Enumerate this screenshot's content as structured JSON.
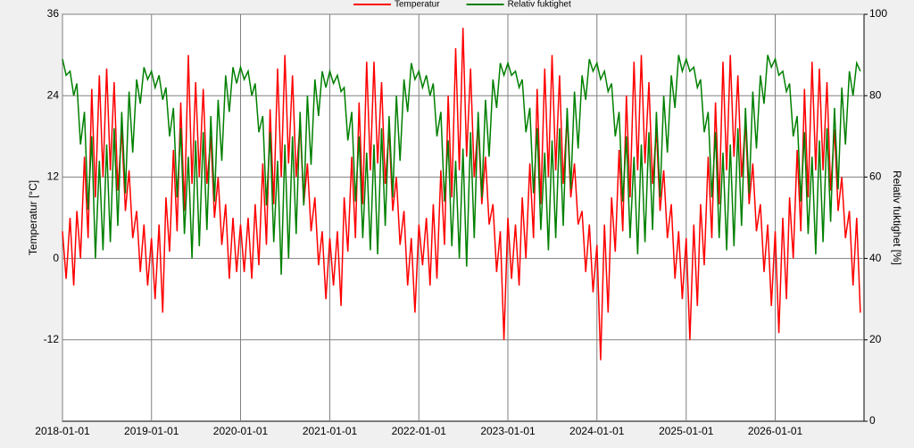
{
  "chart_data": {
    "type": "line",
    "ylabel": "Temperatur [°C]",
    "y2label": "Relativ fuktighet [%]",
    "xlim": [
      "2018-01-01",
      "2026-12-31"
    ],
    "xticks": [
      "2018-01-01",
      "2019-01-01",
      "2020-01-01",
      "2021-01-01",
      "2022-01-01",
      "2023-01-01",
      "2024-01-01",
      "2025-01-01",
      "2026-01-01"
    ],
    "ylim": [
      -24,
      36
    ],
    "yticks": [
      -12,
      0,
      12,
      24,
      36
    ],
    "y2lim": [
      0,
      100
    ],
    "y2ticks": [
      0,
      20,
      40,
      60,
      80,
      100
    ],
    "grid": true,
    "legend": "top",
    "x": [
      "2018-01-01",
      "2018-01-16",
      "2018-02-01",
      "2018-02-16",
      "2018-03-01",
      "2018-03-16",
      "2018-04-01",
      "2018-04-16",
      "2018-05-01",
      "2018-05-16",
      "2018-06-01",
      "2018-06-16",
      "2018-07-01",
      "2018-07-16",
      "2018-08-01",
      "2018-08-16",
      "2018-09-01",
      "2018-09-16",
      "2018-10-01",
      "2018-10-16",
      "2018-11-01",
      "2018-11-16",
      "2018-12-01",
      "2018-12-16",
      "2019-01-01",
      "2019-01-16",
      "2019-02-01",
      "2019-02-16",
      "2019-03-01",
      "2019-03-16",
      "2019-04-01",
      "2019-04-16",
      "2019-05-01",
      "2019-05-16",
      "2019-06-01",
      "2019-06-16",
      "2019-07-01",
      "2019-07-16",
      "2019-08-01",
      "2019-08-16",
      "2019-09-01",
      "2019-09-16",
      "2019-10-01",
      "2019-10-16",
      "2019-11-01",
      "2019-11-16",
      "2019-12-01",
      "2019-12-16",
      "2020-01-01",
      "2020-01-16",
      "2020-02-01",
      "2020-02-16",
      "2020-03-01",
      "2020-03-16",
      "2020-04-01",
      "2020-04-16",
      "2020-05-01",
      "2020-05-16",
      "2020-06-01",
      "2020-06-16",
      "2020-07-01",
      "2020-07-16",
      "2020-08-01",
      "2020-08-16",
      "2020-09-01",
      "2020-09-16",
      "2020-10-01",
      "2020-10-16",
      "2020-11-01",
      "2020-11-16",
      "2020-12-01",
      "2020-12-16",
      "2021-01-01",
      "2021-01-16",
      "2021-02-01",
      "2021-02-16",
      "2021-03-01",
      "2021-03-16",
      "2021-04-01",
      "2021-04-16",
      "2021-05-01",
      "2021-05-16",
      "2021-06-01",
      "2021-06-16",
      "2021-07-01",
      "2021-07-16",
      "2021-08-01",
      "2021-08-16",
      "2021-09-01",
      "2021-09-16",
      "2021-10-01",
      "2021-10-16",
      "2021-11-01",
      "2021-11-16",
      "2021-12-01",
      "2021-12-16",
      "2022-01-01",
      "2022-01-16",
      "2022-02-01",
      "2022-02-16",
      "2022-03-01",
      "2022-03-16",
      "2022-04-01",
      "2022-04-16",
      "2022-05-01",
      "2022-05-16",
      "2022-06-01",
      "2022-06-16",
      "2022-07-01",
      "2022-07-16",
      "2022-08-01",
      "2022-08-16",
      "2022-09-01",
      "2022-09-16",
      "2022-10-01",
      "2022-10-16",
      "2022-11-01",
      "2022-11-16",
      "2022-12-01",
      "2022-12-16",
      "2023-01-01",
      "2023-01-16",
      "2023-02-01",
      "2023-02-16",
      "2023-03-01",
      "2023-03-16",
      "2023-04-01",
      "2023-04-16",
      "2023-05-01",
      "2023-05-16",
      "2023-06-01",
      "2023-06-16",
      "2023-07-01",
      "2023-07-16",
      "2023-08-01",
      "2023-08-16",
      "2023-09-01",
      "2023-09-16",
      "2023-10-01",
      "2023-10-16",
      "2023-11-01",
      "2023-11-16",
      "2023-12-01",
      "2023-12-16",
      "2024-01-01",
      "2024-01-16",
      "2024-02-01",
      "2024-02-16",
      "2024-03-01",
      "2024-03-16",
      "2024-04-01",
      "2024-04-16",
      "2024-05-01",
      "2024-05-16",
      "2024-06-01",
      "2024-06-16",
      "2024-07-01",
      "2024-07-16",
      "2024-08-01",
      "2024-08-16",
      "2024-09-01",
      "2024-09-16",
      "2024-10-01",
      "2024-10-16",
      "2024-11-01",
      "2024-11-16",
      "2024-12-01",
      "2024-12-16",
      "2025-01-01",
      "2025-01-16",
      "2025-02-01",
      "2025-02-16",
      "2025-03-01",
      "2025-03-16",
      "2025-04-01",
      "2025-04-16",
      "2025-05-01",
      "2025-05-16",
      "2025-06-01",
      "2025-06-16",
      "2025-07-01",
      "2025-07-16",
      "2025-08-01",
      "2025-08-16",
      "2025-09-01",
      "2025-09-16",
      "2025-10-01",
      "2025-10-16",
      "2025-11-01",
      "2025-11-16",
      "2025-12-01",
      "2025-12-16",
      "2026-01-01",
      "2026-01-16",
      "2026-02-01",
      "2026-02-16",
      "2026-03-01",
      "2026-03-16",
      "2026-04-01",
      "2026-04-16",
      "2026-05-01",
      "2026-05-16",
      "2026-06-01",
      "2026-06-16",
      "2026-07-01",
      "2026-07-16",
      "2026-08-01",
      "2026-08-16",
      "2026-09-01",
      "2026-09-16",
      "2026-10-01",
      "2026-10-16",
      "2026-11-01",
      "2026-11-16",
      "2026-12-01",
      "2026-12-16"
    ],
    "series": [
      {
        "name": "Temperatur",
        "color": "#ff0000",
        "values": [
          4,
          -3,
          6,
          -4,
          7,
          0,
          15,
          3,
          25,
          9,
          27,
          12,
          28,
          13,
          26,
          10,
          19,
          7,
          13,
          3,
          7,
          -2,
          5,
          -4,
          3,
          -6,
          5,
          -8,
          9,
          1,
          16,
          4,
          23,
          7,
          30,
          11,
          26,
          12,
          25,
          11,
          18,
          6,
          12,
          2,
          8,
          -3,
          6,
          -2,
          5,
          -2,
          6,
          -3,
          8,
          -1,
          14,
          2,
          22,
          8,
          28,
          12,
          30,
          14,
          27,
          12,
          20,
          8,
          14,
          4,
          9,
          -1,
          4,
          -6,
          3,
          -4,
          4,
          -7,
          9,
          1,
          15,
          3,
          23,
          8,
          29,
          13,
          29,
          14,
          26,
          11,
          19,
          7,
          12,
          2,
          7,
          -4,
          3,
          -8,
          5,
          -1,
          6,
          -4,
          8,
          -3,
          13,
          2,
          24,
          9,
          31,
          13,
          34,
          15,
          28,
          12,
          20,
          8,
          15,
          5,
          8,
          -2,
          4,
          -12,
          6,
          -3,
          5,
          -4,
          9,
          0,
          14,
          3,
          25,
          8,
          28,
          12,
          30,
          13,
          27,
          11,
          21,
          9,
          14,
          5,
          7,
          -2,
          5,
          -5,
          2,
          -15,
          5,
          -8,
          9,
          1,
          16,
          4,
          24,
          9,
          29,
          13,
          30,
          14,
          26,
          11,
          19,
          7,
          13,
          3,
          8,
          -3,
          4,
          -6,
          3,
          -12,
          5,
          -7,
          8,
          -1,
          15,
          3,
          23,
          8,
          29,
          13,
          30,
          15,
          27,
          12,
          20,
          8,
          14,
          4,
          8,
          -2,
          5,
          -7,
          4,
          -11,
          6,
          -6,
          9,
          0,
          16,
          4,
          25,
          9,
          29,
          13,
          28,
          13,
          26,
          10,
          19,
          7,
          12,
          3,
          7,
          -4,
          6,
          -8
        ]
      },
      {
        "name": "Relativ fuktighet",
        "color": "#008000",
        "axis": "y2",
        "values": [
          89,
          85,
          86,
          80,
          83,
          68,
          76,
          52,
          70,
          40,
          64,
          42,
          68,
          44,
          72,
          48,
          76,
          56,
          81,
          66,
          84,
          78,
          87,
          84,
          86,
          82,
          85,
          79,
          82,
          70,
          77,
          55,
          72,
          46,
          65,
          40,
          69,
          43,
          71,
          47,
          75,
          54,
          79,
          64,
          85,
          76,
          87,
          83,
          87,
          84,
          86,
          80,
          83,
          71,
          75,
          53,
          71,
          44,
          64,
          36,
          68,
          40,
          70,
          46,
          76,
          53,
          80,
          63,
          84,
          75,
          86,
          82,
          86,
          83,
          85,
          81,
          82,
          69,
          76,
          54,
          70,
          45,
          66,
          42,
          68,
          41,
          72,
          48,
          75,
          55,
          80,
          64,
          84,
          76,
          88,
          84,
          86,
          82,
          85,
          80,
          83,
          70,
          76,
          54,
          69,
          43,
          64,
          40,
          67,
          38,
          71,
          45,
          76,
          55,
          79,
          65,
          84,
          77,
          88,
          85,
          88,
          85,
          86,
          82,
          84,
          71,
          77,
          56,
          72,
          47,
          66,
          42,
          69,
          45,
          72,
          48,
          77,
          57,
          81,
          67,
          85,
          79,
          89,
          86,
          88,
          84,
          86,
          81,
          83,
          70,
          76,
          54,
          70,
          45,
          65,
          41,
          68,
          44,
          71,
          47,
          76,
          55,
          80,
          66,
          85,
          77,
          90,
          86,
          89,
          86,
          87,
          82,
          84,
          71,
          76,
          55,
          71,
          45,
          66,
          42,
          68,
          43,
          72,
          48,
          77,
          56,
          81,
          67,
          85,
          78,
          90,
          87,
          89,
          85,
          86,
          81,
          83,
          70,
          75,
          54,
          71,
          46,
          65,
          41,
          69,
          44,
          72,
          49,
          77,
          57,
          82,
          68,
          86,
          80,
          88,
          86
        ]
      }
    ]
  }
}
